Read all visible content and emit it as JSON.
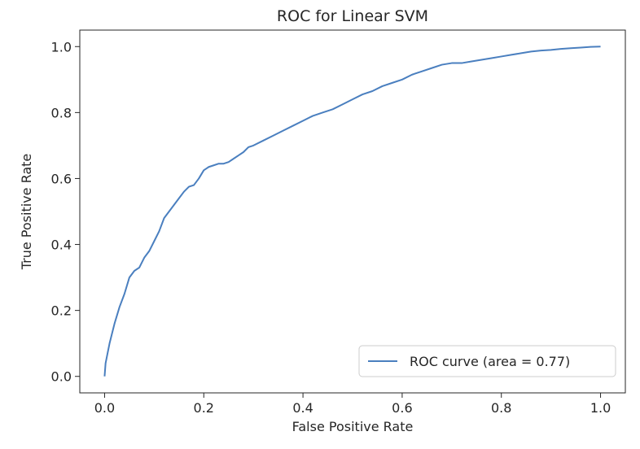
{
  "chart_data": {
    "type": "line",
    "title": "ROC for Linear SVM",
    "xlabel": "False Positive Rate",
    "ylabel": "True Positive Rate",
    "xlim": [
      -0.05,
      1.05
    ],
    "ylim": [
      -0.05,
      1.05
    ],
    "xticks": [
      "0.0",
      "0.2",
      "0.4",
      "0.6",
      "0.8",
      "1.0"
    ],
    "yticks": [
      "0.0",
      "0.2",
      "0.4",
      "0.6",
      "0.8",
      "1.0"
    ],
    "grid": false,
    "legend_position": "lower-right",
    "series": [
      {
        "name": "ROC curve (area = 0.77)",
        "color": "#4a7fbf",
        "x": [
          0.0,
          0.002,
          0.006,
          0.01,
          0.015,
          0.02,
          0.03,
          0.04,
          0.05,
          0.06,
          0.07,
          0.08,
          0.09,
          0.1,
          0.11,
          0.12,
          0.13,
          0.14,
          0.15,
          0.16,
          0.17,
          0.18,
          0.19,
          0.2,
          0.21,
          0.22,
          0.23,
          0.24,
          0.25,
          0.26,
          0.27,
          0.28,
          0.29,
          0.3,
          0.32,
          0.34,
          0.36,
          0.38,
          0.4,
          0.42,
          0.44,
          0.46,
          0.48,
          0.5,
          0.52,
          0.54,
          0.56,
          0.58,
          0.6,
          0.62,
          0.64,
          0.66,
          0.68,
          0.7,
          0.72,
          0.74,
          0.76,
          0.78,
          0.8,
          0.82,
          0.84,
          0.86,
          0.88,
          0.9,
          0.92,
          0.94,
          0.96,
          0.98,
          1.0
        ],
        "y": [
          0.0,
          0.04,
          0.07,
          0.1,
          0.13,
          0.16,
          0.21,
          0.25,
          0.3,
          0.32,
          0.33,
          0.36,
          0.38,
          0.41,
          0.44,
          0.48,
          0.5,
          0.52,
          0.54,
          0.56,
          0.575,
          0.58,
          0.6,
          0.625,
          0.635,
          0.64,
          0.645,
          0.645,
          0.65,
          0.66,
          0.67,
          0.68,
          0.695,
          0.7,
          0.715,
          0.73,
          0.745,
          0.76,
          0.775,
          0.79,
          0.8,
          0.81,
          0.825,
          0.84,
          0.855,
          0.865,
          0.88,
          0.89,
          0.9,
          0.915,
          0.925,
          0.935,
          0.945,
          0.95,
          0.95,
          0.955,
          0.96,
          0.965,
          0.97,
          0.975,
          0.98,
          0.985,
          0.988,
          0.99,
          0.993,
          0.995,
          0.997,
          0.999,
          1.0
        ]
      }
    ]
  }
}
